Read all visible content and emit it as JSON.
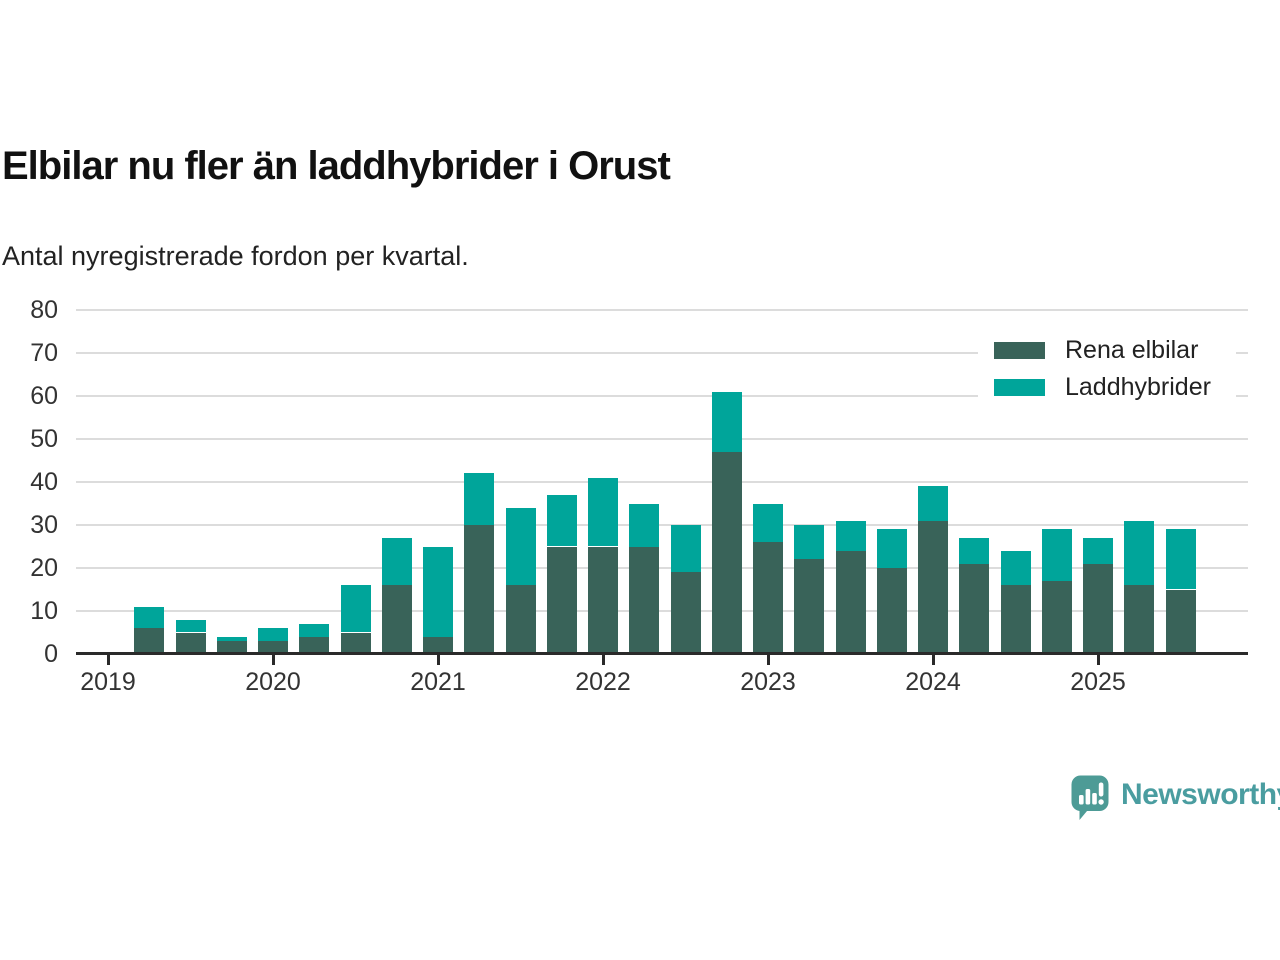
{
  "header": {
    "title": "Elbilar nu fler än laddhybrider i Orust",
    "subtitle": "Antal nyregistrerade fordon per kvartal."
  },
  "chart_data": {
    "type": "bar",
    "stacked": true,
    "title": "Elbilar nu fler än laddhybrider i Orust",
    "subtitle": "Antal nyregistrerade fordon per kvartal.",
    "categories": [
      "2019 Q2",
      "2019 Q3",
      "2019 Q4",
      "2020 Q1",
      "2020 Q2",
      "2020 Q3",
      "2020 Q4",
      "2021 Q1",
      "2021 Q2",
      "2021 Q3",
      "2021 Q4",
      "2022 Q1",
      "2022 Q2",
      "2022 Q3",
      "2022 Q4",
      "2023 Q1",
      "2023 Q2",
      "2023 Q3",
      "2023 Q4",
      "2024 Q1",
      "2024 Q2",
      "2024 Q3",
      "2024 Q4",
      "2025 Q1",
      "2025 Q2",
      "2025 Q3"
    ],
    "series": [
      {
        "name": "Rena elbilar",
        "color": "#396359",
        "values": [
          6,
          5,
          3,
          3,
          4,
          5,
          16,
          4,
          30,
          16,
          25,
          25,
          25,
          19,
          47,
          26,
          22,
          24,
          20,
          31,
          21,
          16,
          17,
          21,
          16,
          15
        ]
      },
      {
        "name": "Laddhybrider",
        "color": "#00a59a",
        "values": [
          5,
          3,
          1,
          3,
          3,
          11,
          11,
          21,
          12,
          18,
          12,
          16,
          10,
          11,
          14,
          9,
          8,
          7,
          9,
          8,
          6,
          8,
          12,
          6,
          15,
          14
        ]
      }
    ],
    "ylim": [
      0,
      80
    ],
    "yticks": [
      0,
      10,
      20,
      30,
      40,
      50,
      60,
      70,
      80
    ],
    "xticks": [
      "2019",
      "2020",
      "2021",
      "2022",
      "2023",
      "2024",
      "2025"
    ],
    "grid": true,
    "legend_position": "top-right"
  },
  "footer": {
    "brand": "Newsworthy"
  },
  "colors": {
    "rena_elbilar": "#396359",
    "laddhybrider": "#00a59a",
    "brand_teal": "#4d9b96",
    "grid": "#dcdcdc",
    "axis": "#2a2a2a"
  }
}
